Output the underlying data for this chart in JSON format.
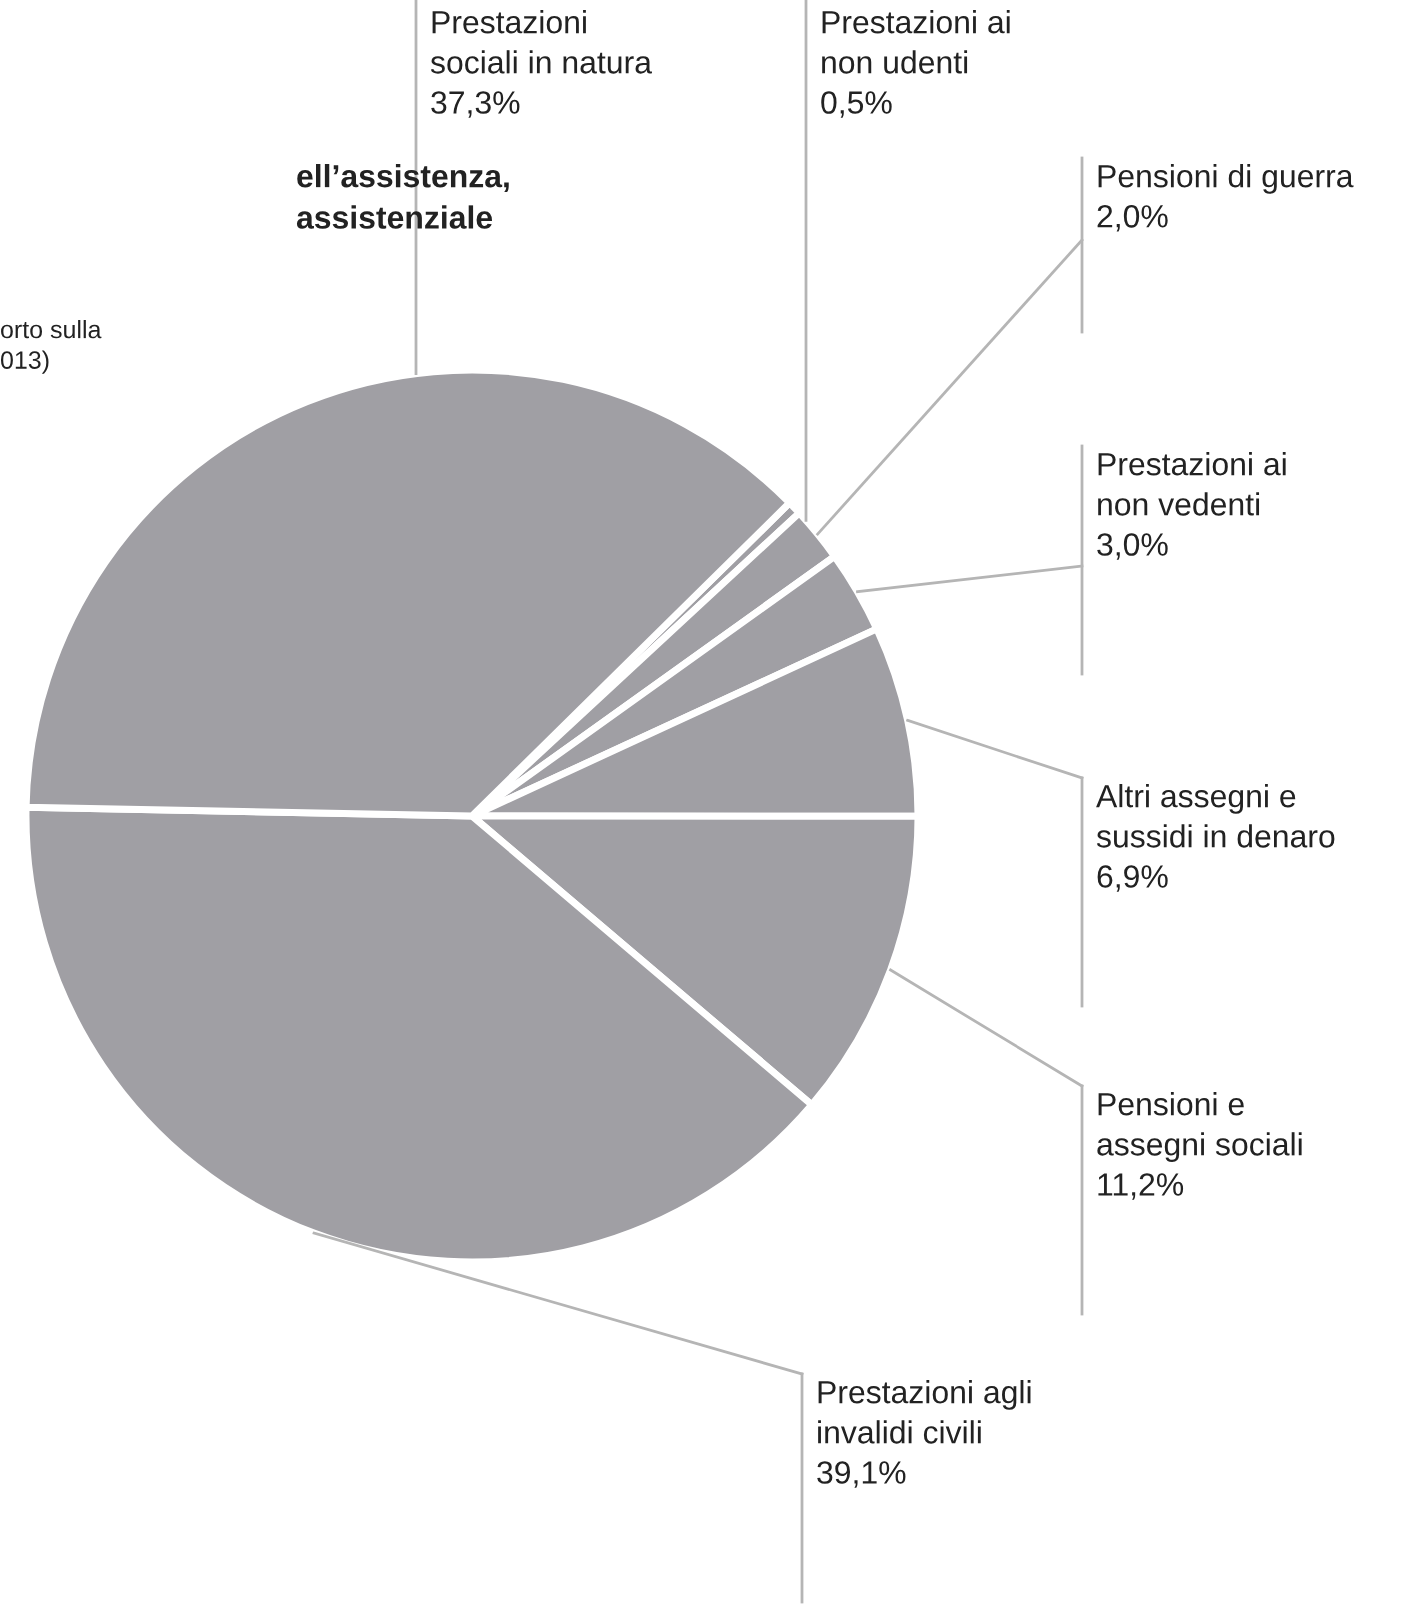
{
  "chart_data": {
    "type": "pie",
    "title": "ell’assistenza,\nassistenziale",
    "annotations": [
      "orto sulla\n013)"
    ],
    "categories": [
      "Prestazioni ai\nnon udenti",
      "Pensioni di guerra",
      "Prestazioni ai\nnon vedenti",
      "Altri assegni e\nsussidi in denaro",
      "Pensioni e\nassegni sociali",
      "Prestazioni agli\ninvalidi civili",
      "Prestazioni\nsociali in natura"
    ],
    "values": [
      0.5,
      2.0,
      3.0,
      6.9,
      11.2,
      39.1,
      37.3
    ],
    "value_labels": [
      "0,5%",
      "2,0%",
      "3,0%",
      "6,9%",
      "11,2%",
      "39,1%",
      "37,3%"
    ],
    "colors": [
      "#a09fa4",
      "#a09fa4",
      "#a09fa4",
      "#a09fa4",
      "#a09fa4",
      "#a09fa4",
      "#a09fa4"
    ]
  }
}
